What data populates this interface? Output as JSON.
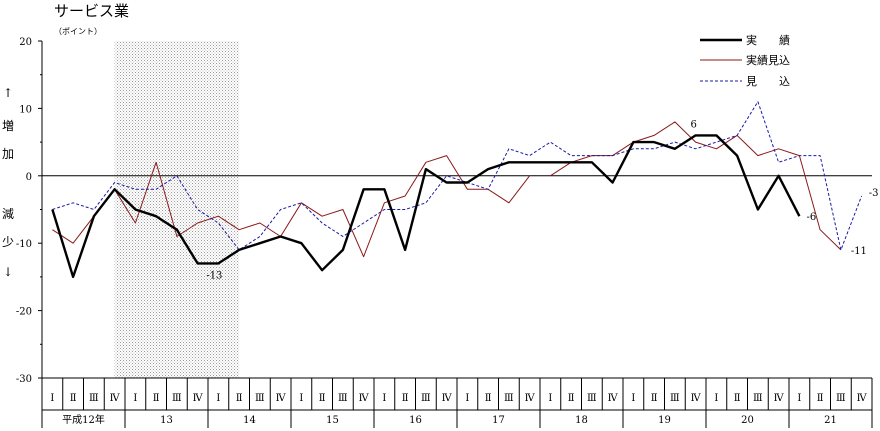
{
  "chart_data": {
    "type": "line",
    "title": "サービス業",
    "unit_label": "（ポイント）",
    "ylim": [
      -30,
      20
    ],
    "yticks": [
      20,
      10,
      0,
      -10,
      -20,
      -30
    ],
    "ylabel_chars": [
      "↑",
      "増",
      "加",
      "減",
      "少",
      "↓"
    ],
    "quarters": [
      "Ⅰ",
      "Ⅱ",
      "Ⅲ",
      "Ⅳ",
      "Ⅰ",
      "Ⅱ",
      "Ⅲ",
      "Ⅳ",
      "Ⅰ",
      "Ⅱ",
      "Ⅲ",
      "Ⅳ",
      "Ⅰ",
      "Ⅱ",
      "Ⅲ",
      "Ⅳ",
      "Ⅰ",
      "Ⅱ",
      "Ⅲ",
      "Ⅳ",
      "Ⅰ",
      "Ⅱ",
      "Ⅲ",
      "Ⅳ",
      "Ⅰ",
      "Ⅱ",
      "Ⅲ",
      "Ⅳ",
      "Ⅰ",
      "Ⅱ",
      "Ⅲ",
      "Ⅳ",
      "Ⅰ",
      "Ⅱ",
      "Ⅲ",
      "Ⅳ",
      "Ⅰ",
      "Ⅱ",
      "Ⅲ",
      "Ⅳ"
    ],
    "years": [
      {
        "label": "平成12年",
        "start": 0
      },
      {
        "label": "13",
        "start": 4
      },
      {
        "label": "14",
        "start": 8
      },
      {
        "label": "15",
        "start": 12
      },
      {
        "label": "16",
        "start": 16
      },
      {
        "label": "17",
        "start": 20
      },
      {
        "label": "18",
        "start": 24
      },
      {
        "label": "19",
        "start": 28
      },
      {
        "label": "20",
        "start": 32
      },
      {
        "label": "21",
        "start": 36
      }
    ],
    "shaded_range": [
      3,
      9
    ],
    "series": [
      {
        "name": "実　　績",
        "color": "#000000",
        "style": "solid-thick",
        "points": [
          [
            0,
            -5
          ],
          [
            1,
            -15
          ],
          [
            2,
            -6
          ],
          [
            3,
            -2
          ],
          [
            4,
            -5
          ],
          [
            5,
            -6
          ],
          [
            6,
            -8
          ],
          [
            7,
            -13
          ],
          [
            8,
            -13
          ],
          [
            9,
            -11
          ],
          [
            10,
            -10
          ],
          [
            11,
            -9
          ],
          [
            12,
            -10
          ],
          [
            13,
            -14
          ],
          [
            14,
            -11
          ],
          [
            15,
            -2
          ],
          [
            16,
            -2
          ],
          [
            17,
            -11
          ],
          [
            18,
            1
          ],
          [
            19,
            -1
          ],
          [
            20,
            -1
          ],
          [
            21,
            1
          ],
          [
            22,
            2
          ],
          [
            23,
            2
          ],
          [
            24,
            2
          ],
          [
            25,
            2
          ],
          [
            26,
            2
          ],
          [
            27,
            -1
          ],
          [
            28,
            5
          ],
          [
            29,
            5
          ],
          [
            30,
            4
          ],
          [
            31,
            6
          ],
          [
            32,
            6
          ],
          [
            33,
            3
          ],
          [
            34,
            -5
          ],
          [
            35,
            0
          ],
          [
            36,
            -6
          ]
        ]
      },
      {
        "name": "実績見込",
        "color": "#8b1a1a",
        "style": "solid-thin",
        "segments": [
          [
            [
              0,
              -8
            ],
            [
              1,
              -10
            ],
            [
              2,
              -6
            ],
            [
              3,
              -2
            ],
            [
              4,
              -7
            ],
            [
              5,
              2
            ],
            [
              6,
              -9
            ],
            [
              7,
              -7
            ],
            [
              8,
              -6
            ],
            [
              9,
              -8
            ],
            [
              10,
              -7
            ],
            [
              11,
              -9
            ],
            [
              12,
              -4
            ],
            [
              13,
              -6
            ],
            [
              14,
              -5
            ],
            [
              15,
              -12
            ],
            [
              16,
              -4
            ],
            [
              17,
              -3
            ],
            [
              18,
              2
            ],
            [
              19,
              3
            ],
            [
              20,
              -2
            ],
            [
              21,
              -2
            ],
            [
              22,
              -4
            ],
            [
              23,
              0
            ]
          ],
          [
            [
              24,
              0
            ],
            [
              25,
              2
            ],
            [
              26,
              3
            ],
            [
              27,
              3
            ],
            [
              28,
              5
            ],
            [
              29,
              6
            ],
            [
              30,
              8
            ],
            [
              31,
              5
            ],
            [
              32,
              4
            ],
            [
              33,
              6
            ],
            [
              34,
              3
            ],
            [
              35,
              4
            ],
            [
              36,
              3
            ],
            [
              37,
              -8
            ],
            [
              38,
              -11
            ]
          ]
        ]
      },
      {
        "name": "見　　込",
        "color": "#1a1aa6",
        "style": "dashed",
        "points": [
          [
            0,
            -5
          ],
          [
            1,
            -4
          ],
          [
            2,
            -5
          ],
          [
            3,
            -1
          ],
          [
            4,
            -2
          ],
          [
            5,
            -2
          ],
          [
            6,
            0
          ],
          [
            7,
            -5
          ],
          [
            8,
            -7
          ],
          [
            9,
            -11
          ],
          [
            10,
            -9
          ],
          [
            11,
            -5
          ],
          [
            12,
            -4
          ],
          [
            13,
            -7
          ],
          [
            14,
            -9
          ],
          [
            15,
            -7
          ],
          [
            16,
            -5
          ],
          [
            17,
            -5
          ],
          [
            18,
            -4
          ],
          [
            19,
            0
          ],
          [
            20,
            -1
          ],
          [
            21,
            -2
          ],
          [
            22,
            4
          ],
          [
            23,
            3
          ],
          [
            24,
            5
          ],
          [
            25,
            3
          ],
          [
            26,
            3
          ],
          [
            27,
            3
          ],
          [
            28,
            4
          ],
          [
            29,
            4
          ],
          [
            30,
            5
          ],
          [
            31,
            4
          ],
          [
            32,
            5
          ],
          [
            33,
            6
          ],
          [
            34,
            11
          ],
          [
            35,
            2
          ],
          [
            36,
            3
          ],
          [
            37,
            3
          ],
          [
            38,
            -11
          ],
          [
            39,
            -3
          ]
        ]
      }
    ],
    "annotations": [
      {
        "text": "-13",
        "i": 8,
        "v": -13
      },
      {
        "text": "6",
        "i": 31,
        "v": 6
      },
      {
        "text": "-6",
        "i": 36,
        "v": -6
      },
      {
        "text": "-11",
        "i": 38,
        "v": -11
      },
      {
        "text": "-3",
        "i": 39,
        "v": -3
      }
    ],
    "legend_position": "top-right",
    "grid": false
  }
}
